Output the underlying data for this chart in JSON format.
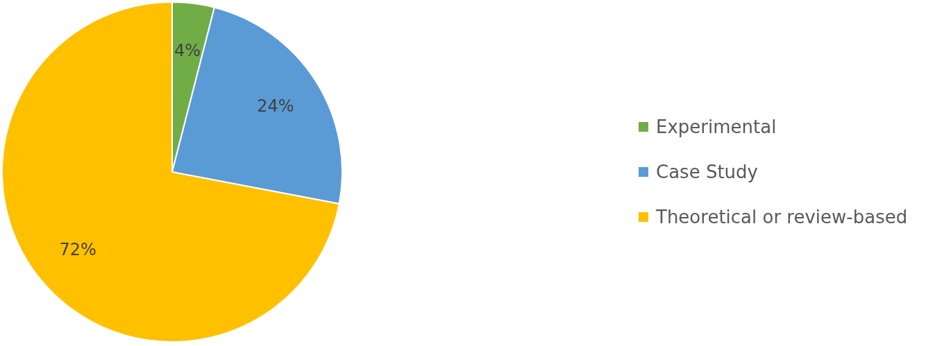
{
  "chart_data": {
    "type": "pie",
    "categories": [
      "Experimental",
      "Case Study",
      "Theoretical or review-based"
    ],
    "values": [
      4,
      24,
      72
    ],
    "colors": [
      "#70ad47",
      "#5b9bd5",
      "#ffc000"
    ],
    "value_labels": [
      "4%",
      "24%",
      "72%"
    ],
    "legend": "right"
  }
}
